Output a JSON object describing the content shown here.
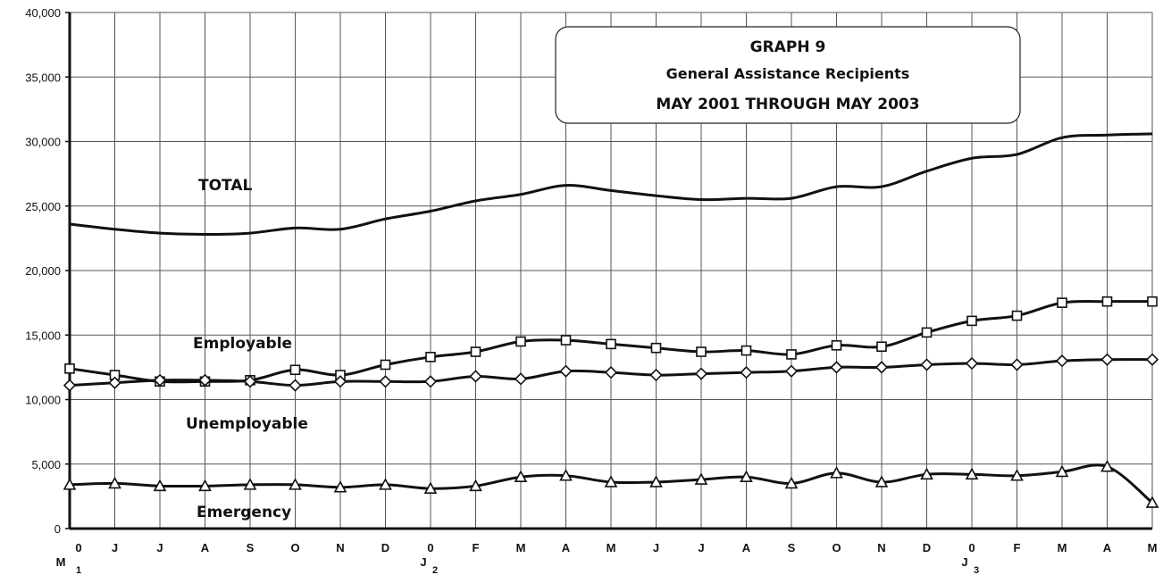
{
  "chart_data": {
    "type": "line",
    "title": "GRAPH 9",
    "subtitle": "General Assistance Recipients",
    "subtitle2": "MAY 2001 THROUGH MAY 2003",
    "ylim": [
      0,
      40000
    ],
    "y_ticks": [
      {
        "value": 0,
        "label": "0"
      },
      {
        "value": 5000,
        "label": "5,000"
      },
      {
        "value": 10000,
        "label": "10,000"
      },
      {
        "value": 15000,
        "label": "15,000"
      },
      {
        "value": 20000,
        "label": "20,000"
      },
      {
        "value": 25000,
        "label": "25,000"
      },
      {
        "value": 30000,
        "label": "30,000"
      },
      {
        "value": 35000,
        "label": "35,000"
      },
      {
        "value": 40000,
        "label": "40,000"
      }
    ],
    "categories": [
      "0",
      "J",
      "J",
      "A",
      "S",
      "O",
      "N",
      "D",
      "0",
      "F",
      "M",
      "A",
      "M",
      "J",
      "J",
      "A",
      "S",
      "O",
      "N",
      "D",
      "0",
      "F",
      "M",
      "A",
      "M"
    ],
    "year_marks": [
      {
        "index": 0,
        "upper": "M",
        "lower": "1"
      },
      {
        "index": 8,
        "upper": "J",
        "lower": "2"
      },
      {
        "index": 20,
        "upper": "J",
        "lower": "3"
      }
    ],
    "grid": true,
    "series": [
      {
        "name": "TOTAL",
        "marker": "none",
        "values": [
          23600,
          23200,
          22900,
          22800,
          22900,
          23300,
          23200,
          24000,
          24600,
          25400,
          25900,
          26600,
          26200,
          25800,
          25500,
          25600,
          25600,
          26500,
          26500,
          27700,
          28700,
          29000,
          30300,
          30500,
          30600
        ]
      },
      {
        "name": "Employable",
        "marker": "square",
        "values": [
          12400,
          11900,
          11400,
          11400,
          11500,
          12300,
          11900,
          12700,
          13300,
          13700,
          14500,
          14600,
          14300,
          14000,
          13700,
          13800,
          13500,
          14200,
          14100,
          15200,
          16100,
          16500,
          17500,
          17600,
          17600
        ]
      },
      {
        "name": "Unemployable",
        "marker": "diamond",
        "values": [
          11100,
          11300,
          11500,
          11500,
          11400,
          11100,
          11400,
          11400,
          11400,
          11800,
          11600,
          12200,
          12100,
          11900,
          12000,
          12100,
          12200,
          12500,
          12500,
          12700,
          12800,
          12700,
          13000,
          13100,
          13100
        ]
      },
      {
        "name": "Emergency",
        "marker": "triangle",
        "values": [
          3400,
          3500,
          3300,
          3300,
          3400,
          3400,
          3200,
          3400,
          3100,
          3300,
          4000,
          4100,
          3600,
          3600,
          3800,
          4000,
          3500,
          4300,
          3600,
          4200,
          4200,
          4100,
          4400,
          4800,
          2000
        ]
      }
    ]
  }
}
